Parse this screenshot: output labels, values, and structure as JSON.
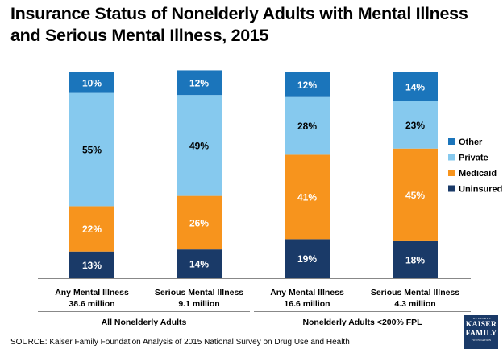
{
  "title": "Insurance Status of Nonelderly Adults with Mental Illness and Serious Mental Illness, 2015",
  "source": "SOURCE: Kaiser Family Foundation Analysis of 2015 National Survey on Drug Use and Health",
  "logo": {
    "top": "THE HENRY J.",
    "line1": "KAISER",
    "line2": "FAMILY",
    "bottom": "FOUNDATION"
  },
  "chart_data": {
    "type": "bar",
    "stacked": true,
    "percent_stacked": true,
    "categories": [
      "Any Mental Illness",
      "Serious Mental Illness",
      "Any Mental Illness",
      "Serious Mental Illness"
    ],
    "category_sublabels": [
      "38.6 million",
      "9.1 million",
      "16.6 million",
      "4.3 million"
    ],
    "groups": [
      {
        "label": "All Nonelderly Adults",
        "category_indices": [
          0,
          1
        ]
      },
      {
        "label": "Nonelderly Adults <200% FPL",
        "category_indices": [
          2,
          3
        ]
      }
    ],
    "series": [
      {
        "name": "Uninsured",
        "color": "#1a3a68",
        "values": [
          13,
          14,
          19,
          18
        ],
        "labels": [
          "13%",
          "14%",
          "19%",
          "18%"
        ]
      },
      {
        "name": "Medicaid",
        "color": "#f7941d",
        "values": [
          22,
          26,
          41,
          45
        ],
        "labels": [
          "22%",
          "26%",
          "41%",
          "45%"
        ]
      },
      {
        "name": "Private",
        "color": "#86c9ee",
        "values": [
          55,
          49,
          28,
          23
        ],
        "labels": [
          "55%",
          "49%",
          "28%",
          "23%"
        ]
      },
      {
        "name": "Other",
        "color": "#1b75bb",
        "values": [
          10,
          12,
          12,
          14
        ],
        "labels": [
          "10%",
          "12%",
          "12%",
          "14%"
        ]
      }
    ],
    "legend": {
      "position": "right",
      "order": [
        "Other",
        "Private",
        "Medicaid",
        "Uninsured"
      ]
    },
    "ylim": [
      0,
      100
    ],
    "grid": false
  }
}
